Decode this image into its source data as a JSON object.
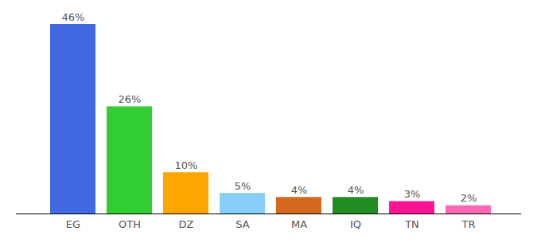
{
  "chart_data": {
    "type": "bar",
    "categories": [
      "EG",
      "OTH",
      "DZ",
      "SA",
      "MA",
      "IQ",
      "TN",
      "TR"
    ],
    "values": [
      46,
      26,
      10,
      5,
      4,
      4,
      3,
      2
    ],
    "value_labels": [
      "46%",
      "26%",
      "10%",
      "5%",
      "4%",
      "4%",
      "3%",
      "2%"
    ],
    "colors": [
      "#4169e1",
      "#32cd32",
      "#ffa500",
      "#87cefa",
      "#d2691e",
      "#228b22",
      "#ff1493",
      "#ff69b4"
    ],
    "ylim": [
      0,
      46
    ],
    "data_labels": true,
    "grid": false,
    "tick_labels": "x"
  }
}
